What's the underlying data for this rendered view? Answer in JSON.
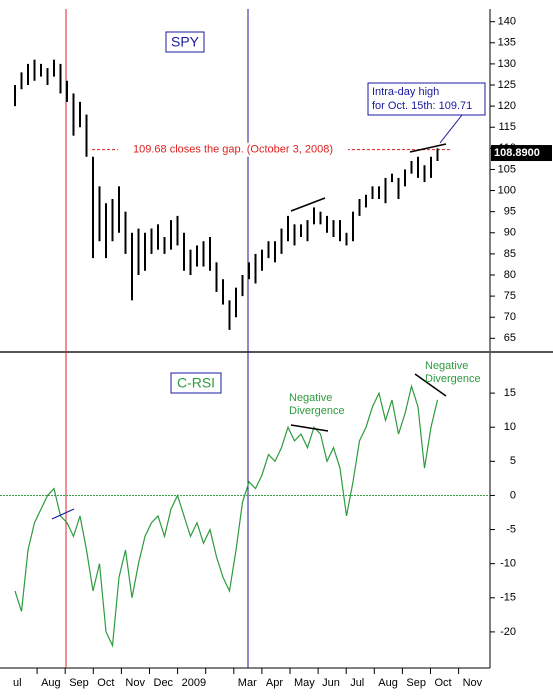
{
  "chart_data": [
    {
      "type": "ohlc",
      "title": "SPY",
      "categories": [
        "ul",
        "Aug",
        "Sep",
        "Oct",
        "Nov",
        "Dec",
        "2009",
        null,
        "Mar",
        "Apr",
        "May",
        "Jun",
        "Jul",
        "Aug",
        "Sep",
        "Oct",
        "Nov"
      ],
      "high": [
        125,
        128,
        130,
        131,
        130,
        129,
        131,
        130,
        126,
        123,
        121,
        118,
        108,
        101,
        97,
        98,
        101,
        95,
        90,
        91,
        90,
        91,
        92,
        89,
        93,
        94,
        90,
        86,
        87,
        88,
        89,
        83,
        79,
        74,
        77,
        80,
        83,
        85,
        86,
        88,
        88,
        91,
        94,
        92,
        92,
        93,
        96,
        95,
        94,
        93,
        93,
        90,
        95,
        98,
        99,
        101,
        101,
        103,
        104,
        103,
        105,
        107,
        108,
        106,
        108,
        110
      ],
      "low": [
        120,
        124,
        125,
        126,
        127,
        125,
        127,
        123,
        121,
        113,
        115,
        108,
        84,
        88,
        84,
        88,
        90,
        85,
        74,
        80,
        81,
        85,
        86,
        85,
        86,
        87,
        81,
        80,
        82,
        82,
        81,
        76,
        73,
        67,
        70,
        75,
        79,
        78,
        81,
        84,
        83,
        85,
        88,
        87,
        89,
        88,
        92,
        92,
        90,
        89,
        88,
        87,
        88,
        94,
        96,
        98,
        98,
        97,
        102,
        98,
        101,
        104,
        103,
        102,
        103,
        107
      ],
      "color": "#000000",
      "ylim": [
        62,
        143
      ],
      "yticks": [
        65,
        70,
        75,
        80,
        85,
        90,
        95,
        100,
        105,
        110,
        115,
        120,
        125,
        130,
        135,
        140
      ],
      "gap_level": 109.68,
      "gap_text": "109.68 closes the gap. (October 3, 2008)",
      "last_price": {
        "value": 108.89,
        "label": "108.8900"
      },
      "annotation": [
        "Intra-day high",
        "for Oct. 15th: 109.71"
      ]
    },
    {
      "type": "line",
      "title": "C-RSI",
      "values": [
        -14,
        -17,
        -8,
        -4,
        -2,
        0,
        1,
        -3,
        -4,
        -6,
        -3,
        -8,
        -14,
        -10,
        -20,
        -22,
        -12,
        -8,
        -15,
        -10,
        -6,
        -4,
        -3,
        -6,
        -2,
        0,
        -3,
        -6,
        -4,
        -7,
        -5,
        -9,
        -12,
        -14,
        -8,
        -1,
        2,
        1,
        3,
        6,
        5,
        7,
        10,
        8,
        9,
        7,
        10,
        9,
        5,
        7,
        4,
        -3,
        2,
        8,
        10,
        13,
        15,
        11,
        14,
        9,
        12,
        16,
        13,
        4,
        10,
        14
      ],
      "color": "#2e9b3e",
      "ylim": [
        -25,
        20
      ],
      "yticks": [
        -20,
        -15,
        -10,
        -5,
        0,
        5,
        10,
        15
      ],
      "annotations": [
        [
          "Negative",
          "Divergence"
        ],
        [
          "Negative",
          "Divergence"
        ]
      ]
    }
  ]
}
